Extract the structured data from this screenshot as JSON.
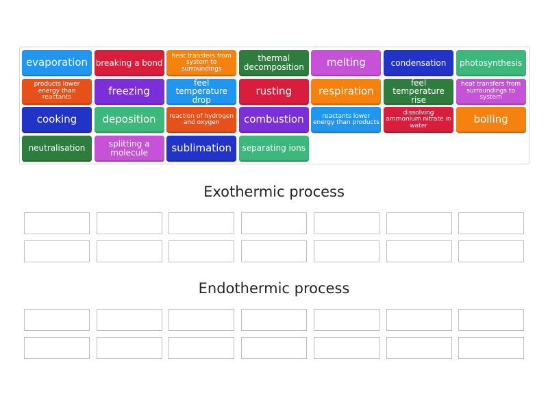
{
  "tiles": [
    {
      "label": "evaporation",
      "color": "#2196F0",
      "size": "l"
    },
    {
      "label": "breaking a bond",
      "color": "#D81E3C",
      "size": "m"
    },
    {
      "label": "heat transfers from system to surroundings",
      "color": "#F5820F",
      "size": "s"
    },
    {
      "label": "thermal decomposition",
      "color": "#2E7D3E",
      "size": "m"
    },
    {
      "label": "melting",
      "color": "#C652D8",
      "size": "l"
    },
    {
      "label": "condensation",
      "color": "#2233C8",
      "size": "m"
    },
    {
      "label": "photosynthesis",
      "color": "#3DB87C",
      "size": "m"
    },
    {
      "label": "products lower energy than reactants",
      "color": "#E8501A",
      "size": "s"
    },
    {
      "label": "freezing",
      "color": "#7B2FD8",
      "size": "l"
    },
    {
      "label": "feel temperature drop",
      "color": "#2196F0",
      "size": "m"
    },
    {
      "label": "rusting",
      "color": "#D81E3C",
      "size": "l"
    },
    {
      "label": "respiration",
      "color": "#F5820F",
      "size": "l"
    },
    {
      "label": "feel temperature rise",
      "color": "#2E7D3E",
      "size": "m"
    },
    {
      "label": "heat transfers from surroundings to system",
      "color": "#C652D8",
      "size": "s"
    },
    {
      "label": "cooking",
      "color": "#2233C8",
      "size": "l"
    },
    {
      "label": "deposition",
      "color": "#3DB87C",
      "size": "l"
    },
    {
      "label": "reaction of hydrogen and oxygen",
      "color": "#E8501A",
      "size": "s"
    },
    {
      "label": "combustion",
      "color": "#7B2FD8",
      "size": "l"
    },
    {
      "label": "reactants lower energy than products",
      "color": "#2196F0",
      "size": "s"
    },
    {
      "label": "dissolving ammonium nitrate in water",
      "color": "#D81E3C",
      "size": "s"
    },
    {
      "label": "boiling",
      "color": "#F5820F",
      "size": "l"
    },
    {
      "label": "neutralisation",
      "color": "#2E7D3E",
      "size": "m"
    },
    {
      "label": "splitting a molecule",
      "color": "#C652D8",
      "size": "m"
    },
    {
      "label": "sublimation",
      "color": "#2233C8",
      "size": "l"
    },
    {
      "label": "separating ions",
      "color": "#3DB87C",
      "size": "m"
    }
  ],
  "groups": [
    {
      "title": "Exothermic process"
    },
    {
      "title": "Endothermic process"
    }
  ]
}
